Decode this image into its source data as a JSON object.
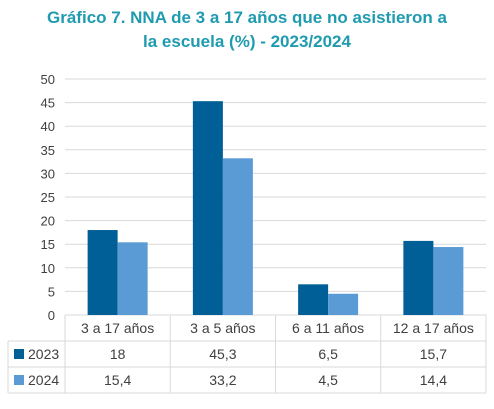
{
  "chart_data": {
    "type": "bar",
    "title_lines": [
      "Gráfico 7. NNA de 3 a 17 años que no asistieron a",
      "la escuela (%) - 2023/2024"
    ],
    "categories": [
      "3 a 17 años",
      "3 a 5 años",
      "6 a 11 años",
      "12 a 17 años"
    ],
    "series": [
      {
        "name": "2023",
        "values": [
          18,
          45.3,
          6.5,
          15.7
        ],
        "labels": [
          "18",
          "45,3",
          "6,5",
          "15,7"
        ],
        "color": "#005f96"
      },
      {
        "name": "2024",
        "values": [
          15.4,
          33.2,
          4.5,
          14.4
        ],
        "labels": [
          "15,4",
          "33,2",
          "4,5",
          "14,4"
        ],
        "color": "#5b9bd5"
      }
    ],
    "ylim": [
      0,
      50
    ],
    "yticks": [
      0,
      5,
      10,
      15,
      20,
      25,
      30,
      35,
      40,
      45,
      50
    ],
    "grid": true,
    "legend": "data-table"
  }
}
